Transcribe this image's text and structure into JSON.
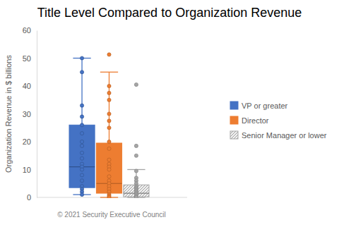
{
  "chart_data": {
    "type": "box",
    "title": "Title Level Compared to Organization Revenue",
    "y_label": "Organization Revenue in $ billions",
    "footnote": "© 2021 Security Executive Council",
    "ylim": [
      0,
      60
    ],
    "yticks": [
      0,
      10,
      20,
      30,
      40,
      50,
      60
    ],
    "grid": false,
    "legend": "right",
    "series": [
      {
        "name": "VP or greater",
        "color": "#4472c4",
        "min": 1,
        "q1": 3.5,
        "median": 11,
        "q3": 26,
        "max": 50,
        "points": [
          50,
          45,
          33,
          29,
          26,
          23,
          20,
          18.5,
          16,
          14,
          12,
          11,
          10,
          8,
          6,
          4,
          3,
          2,
          1
        ]
      },
      {
        "name": "Director",
        "color": "#ed7d31",
        "min": 0,
        "q1": 1.5,
        "median": 5,
        "q3": 19.5,
        "max": 45,
        "points": [
          51.3,
          40,
          37.5,
          35,
          30,
          27.5,
          25,
          20,
          17.5,
          13.5,
          12,
          11,
          10,
          7.5,
          6,
          5,
          4,
          3,
          2,
          1,
          0.5,
          0
        ]
      },
      {
        "name": "Senior Manager or lower",
        "color": "#a5a5a5",
        "min": 0,
        "q1": 0.2,
        "median": 1.5,
        "q3": 4.5,
        "max": 10,
        "points": [
          40.5,
          18.5,
          15,
          9.5,
          7,
          6,
          5,
          4,
          3.5,
          3,
          2.5,
          2,
          1.5,
          1,
          0.5,
          0
        ]
      }
    ]
  }
}
